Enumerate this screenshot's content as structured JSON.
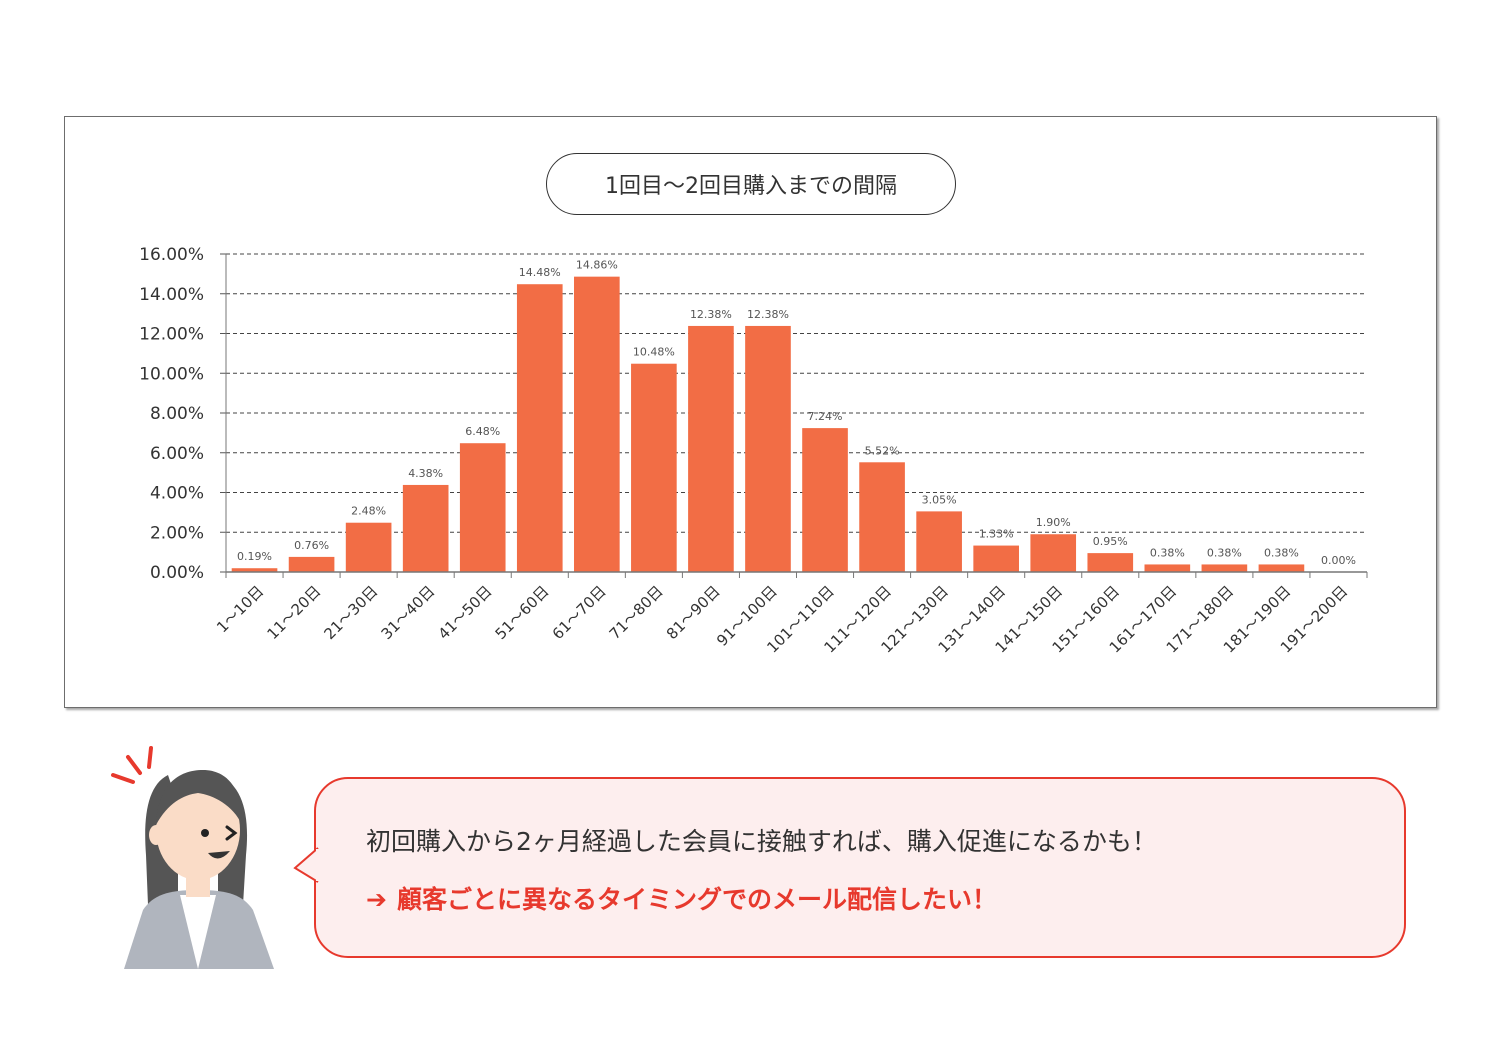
{
  "chart_data": {
    "type": "bar",
    "title": "1回目〜2回目購入までの間隔",
    "categories": [
      "1〜10日",
      "11〜20日",
      "21〜30日",
      "31〜40日",
      "41〜50日",
      "51〜60日",
      "61〜70日",
      "71〜80日",
      "81〜90日",
      "91〜100日",
      "101〜110日",
      "111〜120日",
      "121〜130日",
      "131〜140日",
      "141〜150日",
      "151〜160日",
      "161〜170日",
      "171〜180日",
      "181〜190日",
      "191〜200日"
    ],
    "values": [
      0.19,
      0.76,
      2.48,
      4.38,
      6.48,
      14.48,
      14.86,
      10.48,
      12.38,
      12.38,
      7.24,
      5.52,
      3.05,
      1.33,
      1.9,
      0.95,
      0.38,
      0.38,
      0.38,
      0.0
    ],
    "data_labels": [
      "0.19%",
      "0.76%",
      "2.48%",
      "4.38%",
      "6.48%",
      "14.48%",
      "14.86%",
      "10.48%",
      "12.38%",
      "12.38%",
      "7.24%",
      "5.52%",
      "3.05%",
      "1.33%",
      "1.90%",
      "0.95%",
      "0.38%",
      "0.38%",
      "0.38%",
      "0.00%"
    ],
    "y_ticks": [
      "0.00%",
      "2.00%",
      "4.00%",
      "6.00%",
      "8.00%",
      "10.00%",
      "12.00%",
      "14.00%",
      "16.00%"
    ],
    "ylim": [
      0,
      16
    ],
    "grid": true,
    "bar_color": "#f26d45"
  },
  "message": {
    "line1": "初回購入から2ヶ月経過した会員に接触すれば、購入促進になるかも！",
    "line2": "顧客ごとに異なるタイミングでのメール配信したい！",
    "accent_color": "#e7392d"
  }
}
